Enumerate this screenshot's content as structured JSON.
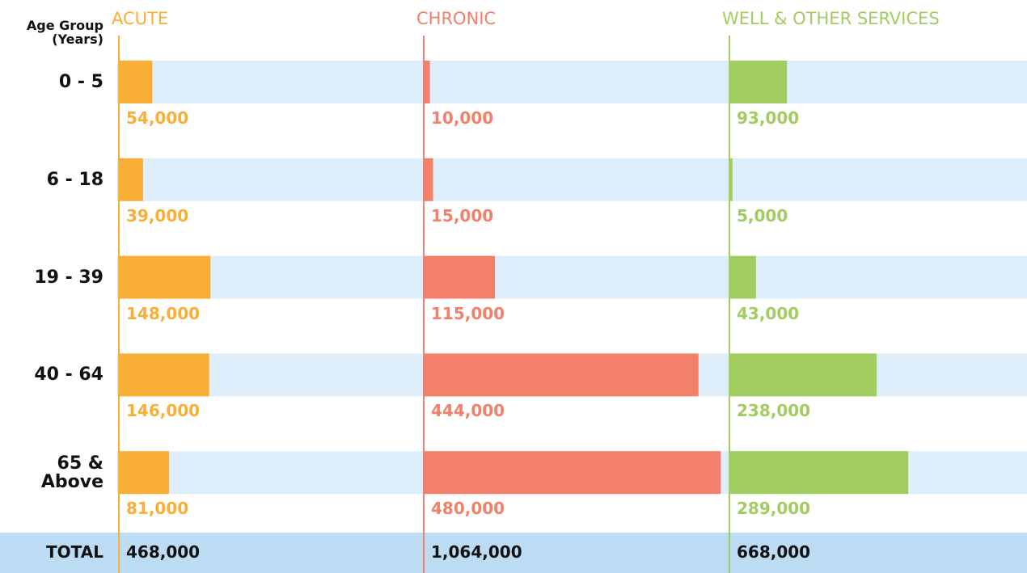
{
  "chart_data": {
    "type": "bar",
    "header": "Age Group (Years)",
    "categories": [
      "0 - 5",
      "6 - 18",
      "19 - 39",
      "40 - 64",
      "65 & Above"
    ],
    "total_title": "TOTAL",
    "xlim": [
      0,
      490000
    ],
    "background_color": "#deeefa",
    "total_color": "#bcdcf3",
    "series": [
      {
        "name": "ACUTE",
        "color": "#f9ae36",
        "values": [
          54000,
          39000,
          148000,
          146000,
          81000
        ],
        "value_labels": [
          "54,000",
          "39,000",
          "148,000",
          "146,000",
          "81,000"
        ],
        "total": "468,000"
      },
      {
        "name": "CHRONIC",
        "color": "#f2806a",
        "values": [
          10000,
          15000,
          115000,
          444000,
          480000
        ],
        "value_labels": [
          "10,000",
          "15,000",
          "115,000",
          "444,000",
          "480,000"
        ],
        "total": "1,064,000"
      },
      {
        "name": "WELL & OTHER SERVICES",
        "color": "#a0cd5e",
        "values": [
          93000,
          5000,
          43000,
          238000,
          289000
        ],
        "value_labels": [
          "93,000",
          "5,000",
          "43,000",
          "238,000",
          "289,000"
        ],
        "total": "668,000"
      }
    ]
  }
}
